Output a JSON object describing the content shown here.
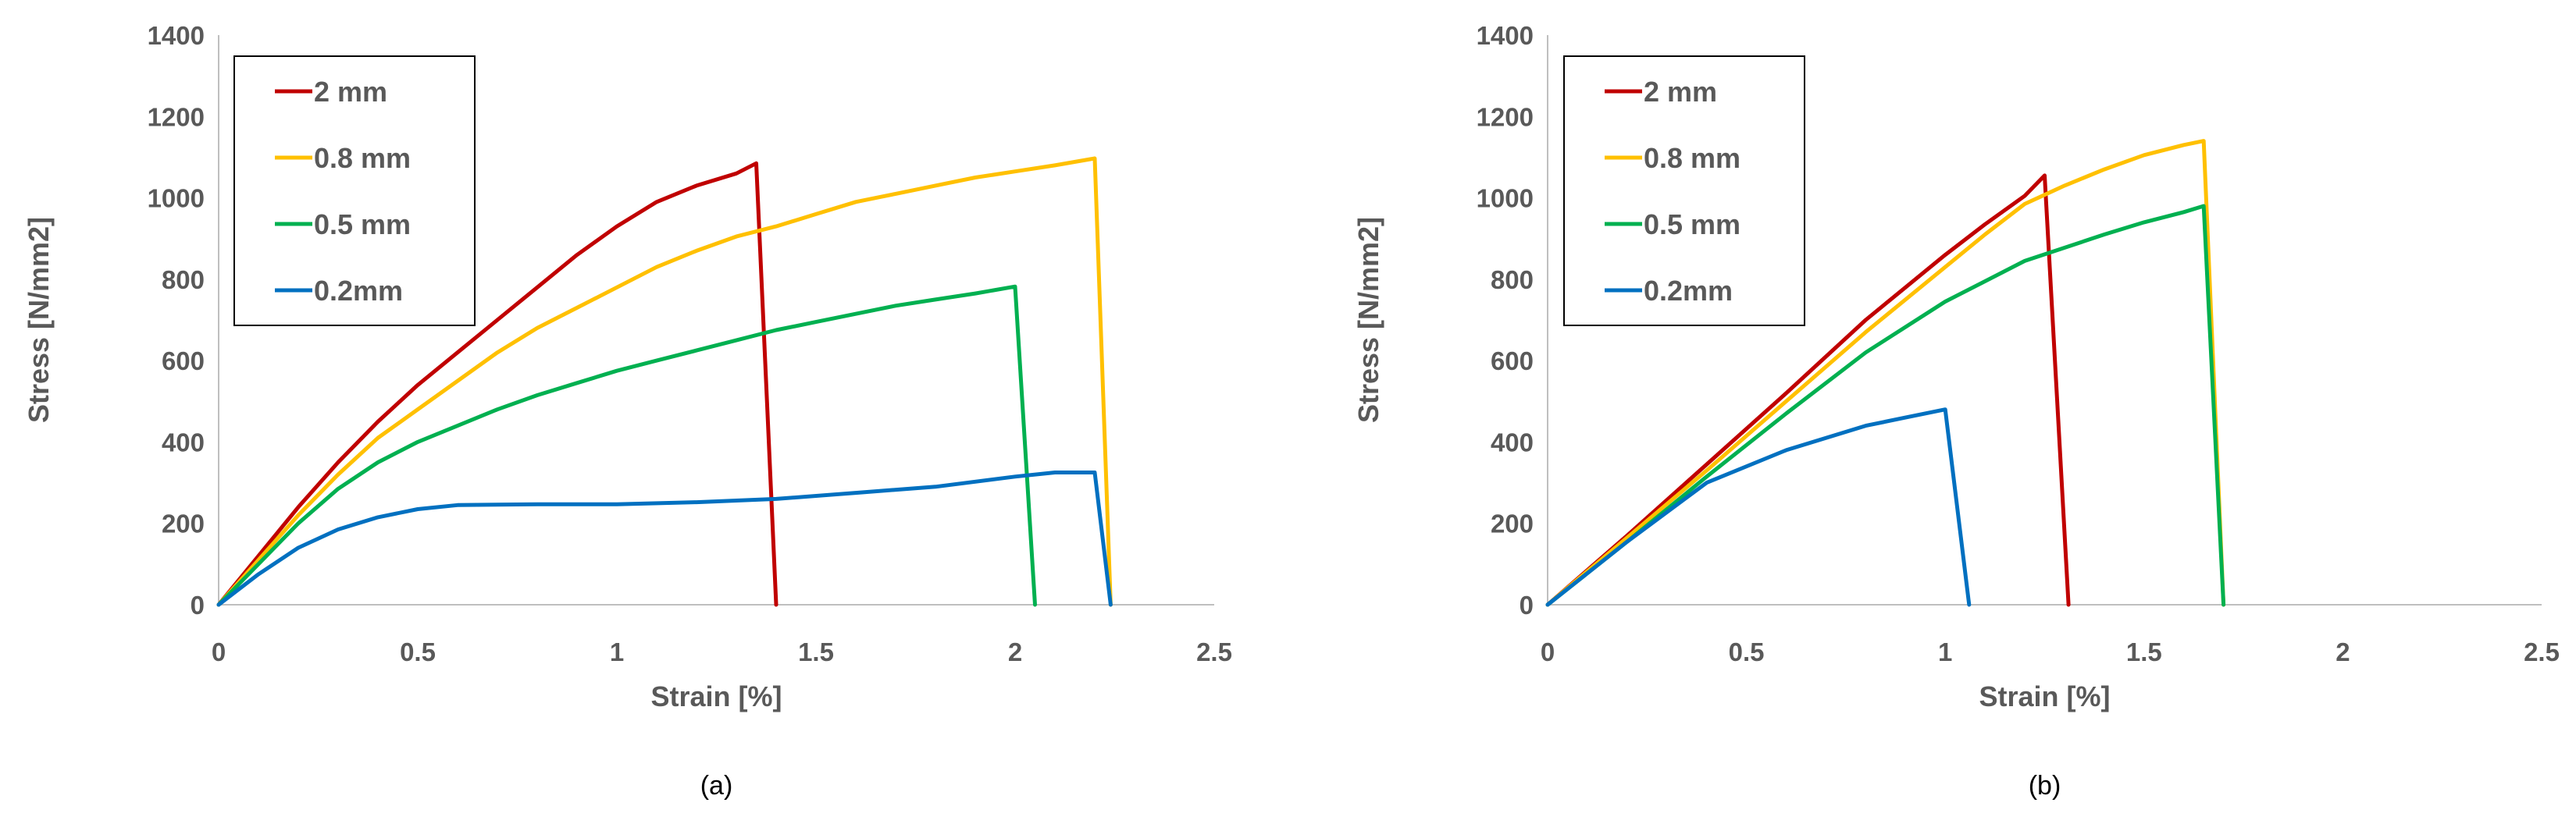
{
  "figure": {
    "panels": [
      {
        "label": "(a)"
      },
      {
        "label": "(b)"
      }
    ]
  },
  "chart_data": [
    {
      "type": "line",
      "panel_label": "(a)",
      "xlabel": "Strain [%]",
      "ylabel": "Stress [N/mm2]",
      "xlim": [
        0,
        2.5
      ],
      "ylim": [
        0,
        1400
      ],
      "x_ticks": [
        "0",
        "0.5",
        "1",
        "1.5",
        "2",
        "2.5"
      ],
      "y_ticks": [
        "0",
        "200",
        "400",
        "600",
        "800",
        "1000",
        "1200",
        "1400"
      ],
      "grid": false,
      "legend": "top-left",
      "series": [
        {
          "name": "2 mm",
          "color": "#C00000",
          "points": [
            [
              0,
              0
            ],
            [
              0.1,
              120
            ],
            [
              0.2,
              240
            ],
            [
              0.3,
              350
            ],
            [
              0.4,
              450
            ],
            [
              0.5,
              540
            ],
            [
              0.6,
              620
            ],
            [
              0.7,
              700
            ],
            [
              0.8,
              780
            ],
            [
              0.9,
              860
            ],
            [
              1.0,
              930
            ],
            [
              1.1,
              990
            ],
            [
              1.2,
              1030
            ],
            [
              1.3,
              1060
            ],
            [
              1.35,
              1085
            ],
            [
              1.4,
              0
            ]
          ]
        },
        {
          "name": "0.8 mm",
          "color": "#FFC000",
          "points": [
            [
              0,
              0
            ],
            [
              0.1,
              110
            ],
            [
              0.2,
              220
            ],
            [
              0.3,
              320
            ],
            [
              0.4,
              410
            ],
            [
              0.5,
              480
            ],
            [
              0.6,
              550
            ],
            [
              0.7,
              620
            ],
            [
              0.8,
              680
            ],
            [
              0.9,
              730
            ],
            [
              1.0,
              780
            ],
            [
              1.1,
              830
            ],
            [
              1.2,
              870
            ],
            [
              1.3,
              905
            ],
            [
              1.4,
              930
            ],
            [
              1.5,
              960
            ],
            [
              1.6,
              990
            ],
            [
              1.7,
              1010
            ],
            [
              1.8,
              1030
            ],
            [
              1.9,
              1050
            ],
            [
              2.0,
              1065
            ],
            [
              2.1,
              1080
            ],
            [
              2.2,
              1097
            ],
            [
              2.24,
              0
            ]
          ]
        },
        {
          "name": "0.5 mm",
          "color": "#00B050",
          "points": [
            [
              0,
              0
            ],
            [
              0.1,
              100
            ],
            [
              0.2,
              200
            ],
            [
              0.3,
              285
            ],
            [
              0.4,
              350
            ],
            [
              0.5,
              400
            ],
            [
              0.6,
              440
            ],
            [
              0.7,
              480
            ],
            [
              0.8,
              515
            ],
            [
              0.9,
              545
            ],
            [
              1.0,
              575
            ],
            [
              1.1,
              600
            ],
            [
              1.2,
              625
            ],
            [
              1.3,
              650
            ],
            [
              1.4,
              675
            ],
            [
              1.5,
              695
            ],
            [
              1.6,
              715
            ],
            [
              1.7,
              735
            ],
            [
              1.8,
              750
            ],
            [
              1.9,
              765
            ],
            [
              2.0,
              782
            ],
            [
              2.05,
              0
            ]
          ]
        },
        {
          "name": "0.2mm",
          "color": "#0070C0",
          "points": [
            [
              0,
              0
            ],
            [
              0.1,
              75
            ],
            [
              0.2,
              140
            ],
            [
              0.3,
              185
            ],
            [
              0.4,
              215
            ],
            [
              0.5,
              235
            ],
            [
              0.6,
              245
            ],
            [
              0.8,
              247
            ],
            [
              1.0,
              247
            ],
            [
              1.2,
              252
            ],
            [
              1.4,
              260
            ],
            [
              1.6,
              275
            ],
            [
              1.8,
              290
            ],
            [
              2.0,
              315
            ],
            [
              2.1,
              325
            ],
            [
              2.2,
              325
            ],
            [
              2.24,
              0
            ]
          ]
        }
      ]
    },
    {
      "type": "line",
      "panel_label": "(b)",
      "xlabel": "Strain [%]",
      "ylabel": "Stress [N/mm2]",
      "xlim": [
        0,
        2.5
      ],
      "ylim": [
        0,
        1400
      ],
      "x_ticks": [
        "0",
        "0.5",
        "1",
        "1.5",
        "2",
        "2.5"
      ],
      "y_ticks": [
        "0",
        "200",
        "400",
        "600",
        "800",
        "1000",
        "1200",
        "1400"
      ],
      "grid": false,
      "legend": "top-left",
      "series": [
        {
          "name": "2 mm",
          "color": "#C00000",
          "points": [
            [
              0,
              0
            ],
            [
              0.2,
              170
            ],
            [
              0.4,
              345
            ],
            [
              0.6,
              520
            ],
            [
              0.8,
              700
            ],
            [
              1.0,
              860
            ],
            [
              1.1,
              935
            ],
            [
              1.2,
              1005
            ],
            [
              1.25,
              1055
            ],
            [
              1.31,
              0
            ]
          ]
        },
        {
          "name": "0.8 mm",
          "color": "#FFC000",
          "points": [
            [
              0,
              0
            ],
            [
              0.2,
              165
            ],
            [
              0.4,
              330
            ],
            [
              0.6,
              500
            ],
            [
              0.8,
              670
            ],
            [
              1.0,
              830
            ],
            [
              1.1,
              910
            ],
            [
              1.2,
              985
            ],
            [
              1.3,
              1030
            ],
            [
              1.4,
              1070
            ],
            [
              1.5,
              1105
            ],
            [
              1.6,
              1130
            ],
            [
              1.65,
              1140
            ],
            [
              1.7,
              0
            ]
          ]
        },
        {
          "name": "0.5 mm",
          "color": "#00B050",
          "points": [
            [
              0,
              0
            ],
            [
              0.2,
              155
            ],
            [
              0.4,
              315
            ],
            [
              0.6,
              470
            ],
            [
              0.8,
              620
            ],
            [
              1.0,
              745
            ],
            [
              1.2,
              845
            ],
            [
              1.4,
              910
            ],
            [
              1.5,
              940
            ],
            [
              1.6,
              965
            ],
            [
              1.65,
              980
            ],
            [
              1.7,
              0
            ]
          ]
        },
        {
          "name": "0.2mm",
          "color": "#0070C0",
          "points": [
            [
              0,
              0
            ],
            [
              0.2,
              155
            ],
            [
              0.4,
              300
            ],
            [
              0.6,
              380
            ],
            [
              0.8,
              440
            ],
            [
              0.9,
              460
            ],
            [
              1.0,
              480
            ],
            [
              1.06,
              0
            ]
          ]
        }
      ]
    }
  ]
}
